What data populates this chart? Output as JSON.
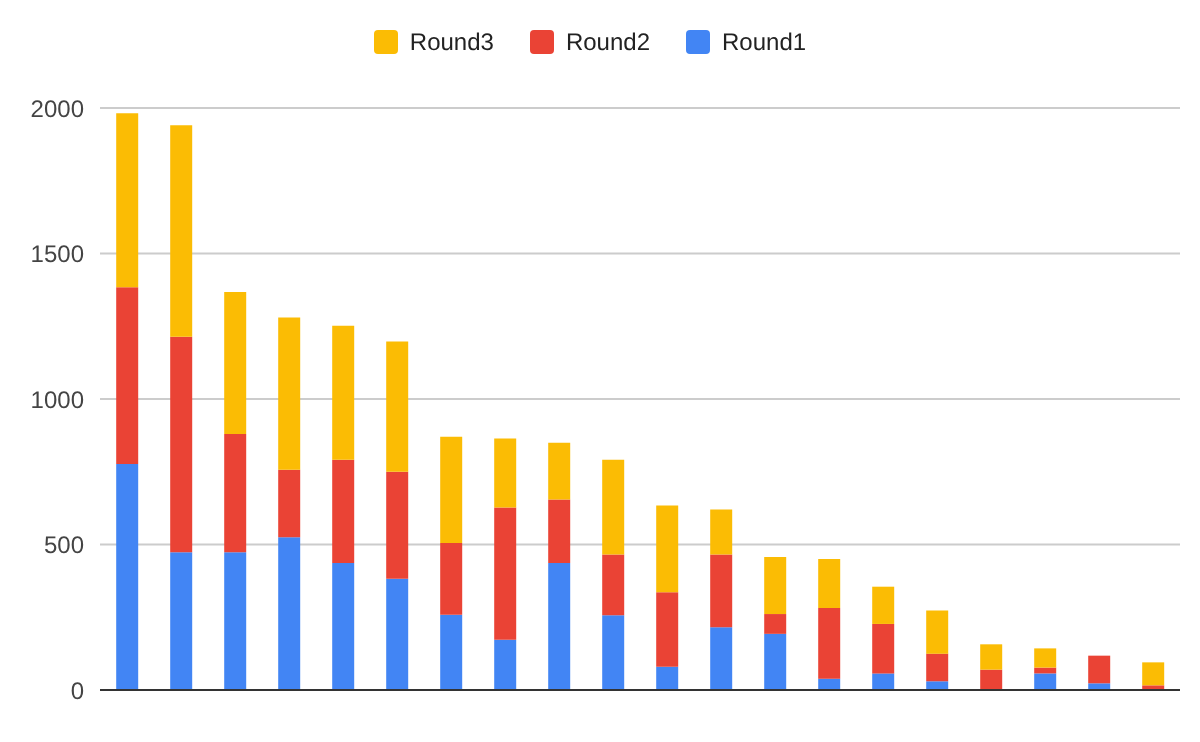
{
  "chart_data": {
    "type": "bar",
    "stacked": true,
    "categories": [
      null,
      null,
      null,
      null,
      null,
      null,
      null,
      null,
      null,
      null,
      null,
      null,
      null,
      null,
      null,
      null,
      null,
      null,
      null,
      null
    ],
    "series": [
      {
        "name": "Round1",
        "color": "#4285f4",
        "values": [
          777,
          473,
          473,
          525,
          436,
          382,
          259,
          173,
          436,
          257,
          80,
          216,
          193,
          39,
          57,
          30,
          0,
          57,
          23,
          0
        ]
      },
      {
        "name": "Round2",
        "color": "#ea4335",
        "values": [
          607,
          741,
          407,
          232,
          355,
          368,
          246,
          454,
          219,
          209,
          256,
          250,
          68,
          243,
          170,
          95,
          70,
          20,
          95,
          16
        ]
      },
      {
        "name": "Round3",
        "color": "#fbbc04",
        "values": [
          598,
          727,
          488,
          523,
          461,
          448,
          365,
          237,
          195,
          325,
          298,
          154,
          196,
          168,
          128,
          148,
          87,
          66,
          0,
          79
        ]
      }
    ],
    "ylim": [
      0,
      2000
    ],
    "yticks": [
      0,
      500,
      1000,
      1500,
      2000
    ],
    "grid": "y",
    "legend": "top"
  }
}
